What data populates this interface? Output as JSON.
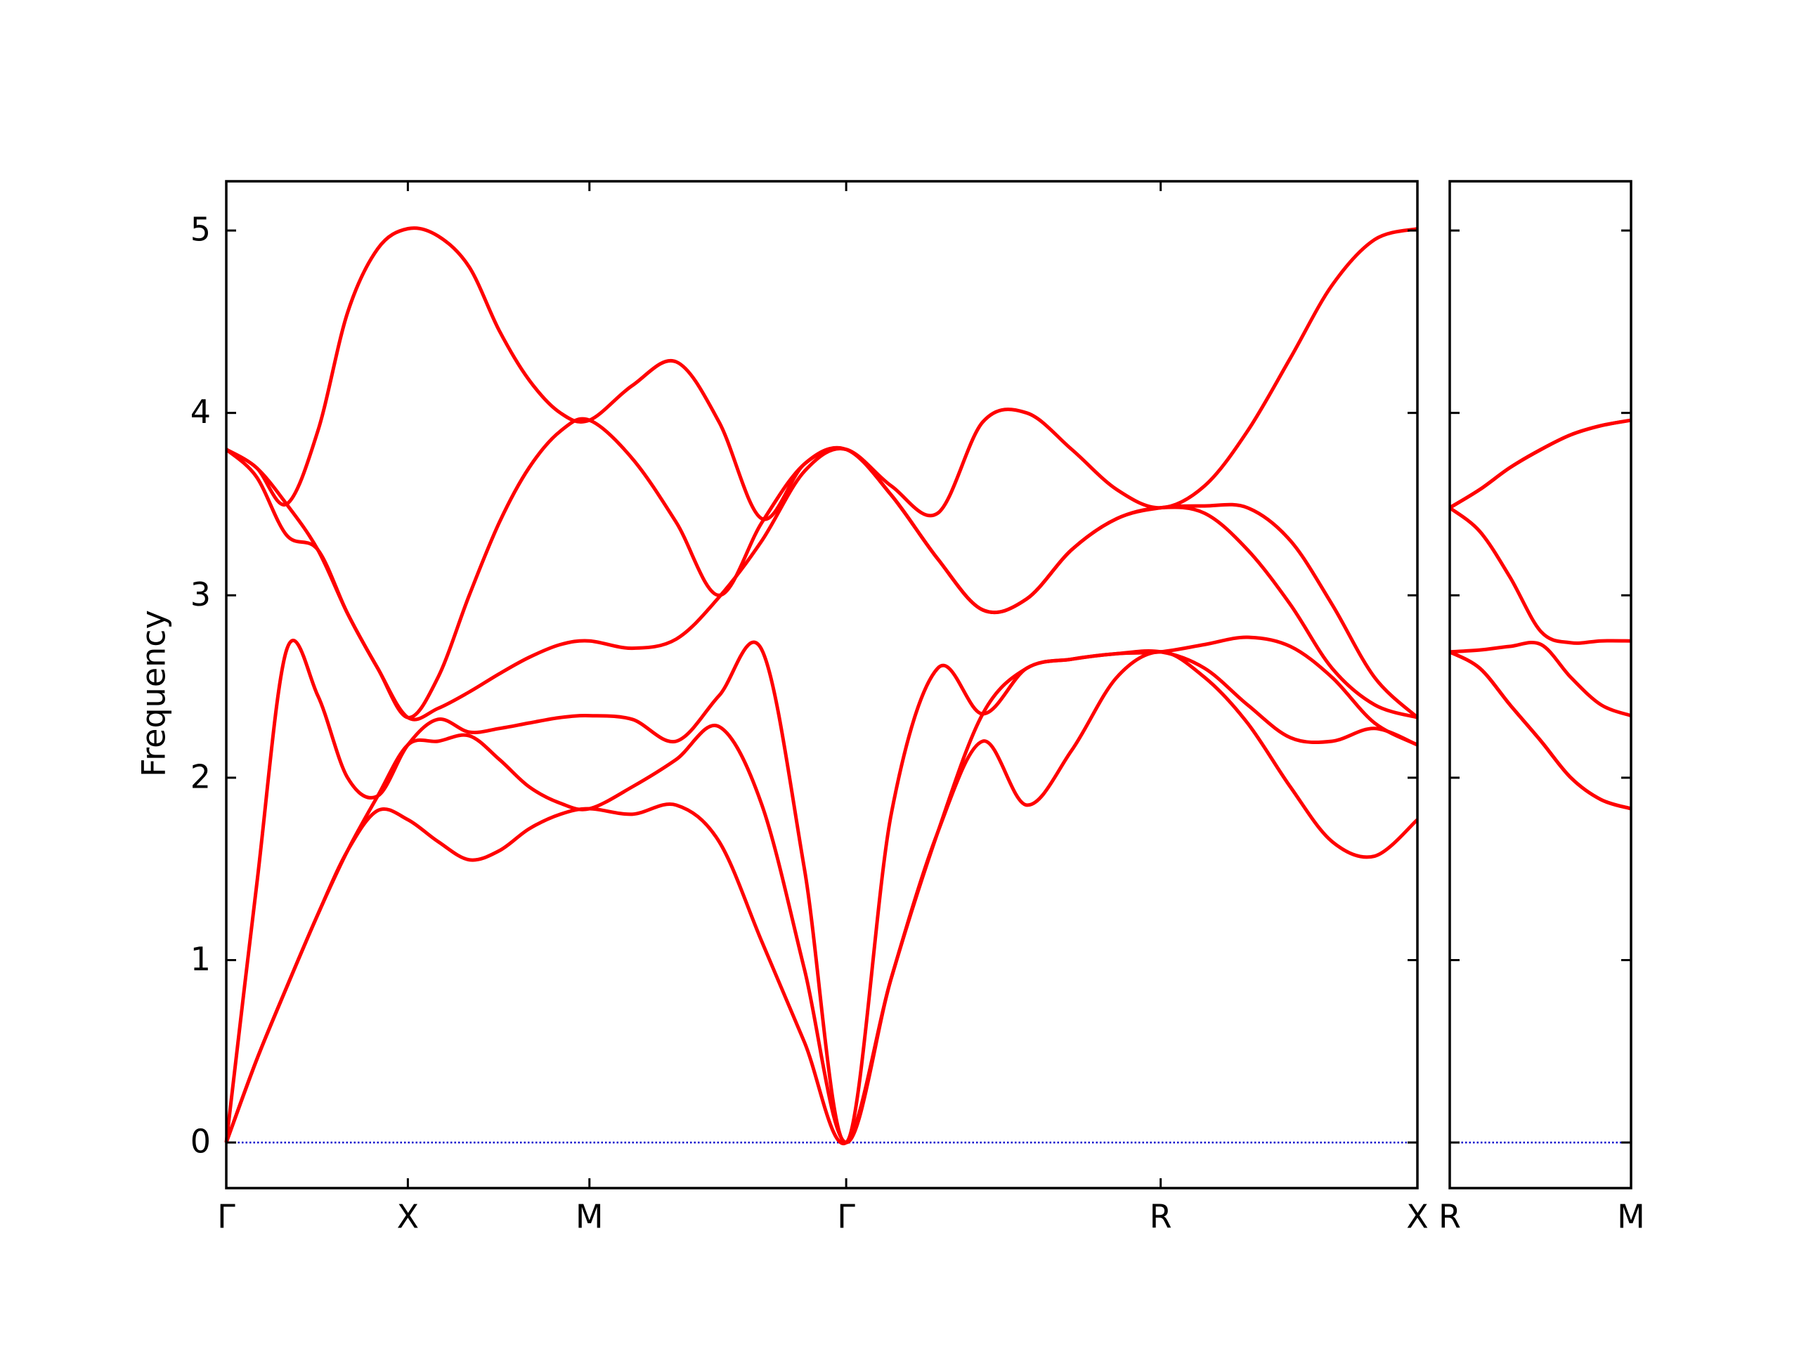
{
  "chart_data": [
    {
      "type": "line",
      "ylabel": "Frequency",
      "xlim": [
        0,
        3.28
      ],
      "ylim": [
        -0.25,
        5.27
      ],
      "xticks": [
        {
          "value": 0,
          "label": "Γ"
        },
        {
          "value": 0.5,
          "label": "X"
        },
        {
          "value": 1.0,
          "label": "M"
        },
        {
          "value": 1.707,
          "label": "Γ"
        },
        {
          "value": 2.573,
          "label": "R"
        },
        {
          "value": 3.28,
          "label": "X"
        }
      ],
      "yticks": [
        0,
        1,
        2,
        3,
        4,
        5
      ],
      "show_yticklabels": true,
      "hline": {
        "value": 0,
        "color": "#0000cc",
        "style": "dotted"
      },
      "x": [
        0,
        0.083,
        0.166,
        0.252,
        0.334,
        0.417,
        0.5,
        0.583,
        0.669,
        0.752,
        0.834,
        0.92,
        1.0,
        1.118,
        1.239,
        1.357,
        1.475,
        1.592,
        1.707,
        1.831,
        1.959,
        2.083,
        2.204,
        2.328,
        2.452,
        2.573,
        2.694,
        2.812,
        2.93,
        3.045,
        3.162,
        3.28
      ],
      "series": [
        {
          "color": "#ff0000",
          "values": [
            0,
            0.45,
            0.85,
            1.25,
            1.6,
            1.82,
            1.77,
            1.65,
            1.55,
            1.6,
            1.72,
            1.8,
            1.83,
            1.8,
            1.85,
            1.65,
            1.1,
            0.55,
            0,
            0.9,
            1.7,
            2.2,
            1.85,
            2.15,
            2.55,
            2.69,
            2.55,
            2.3,
            1.95,
            1.65,
            1.57,
            1.77
          ]
        },
        {
          "color": "#ff0000",
          "values": [
            0,
            0.45,
            0.85,
            1.25,
            1.6,
            1.9,
            2.18,
            2.2,
            2.23,
            2.1,
            1.95,
            1.86,
            1.83,
            1.95,
            2.1,
            2.28,
            1.85,
            0.95,
            0,
            0.9,
            1.7,
            2.35,
            2.6,
            2.65,
            2.68,
            2.69,
            2.6,
            2.4,
            2.22,
            2.2,
            2.27,
            2.18
          ]
        },
        {
          "color": "#ff0000",
          "values": [
            0,
            1.4,
            2.7,
            2.45,
            2.0,
            1.9,
            2.18,
            2.32,
            2.25,
            2.27,
            2.3,
            2.33,
            2.34,
            2.32,
            2.2,
            2.45,
            2.7,
            1.5,
            0,
            1.8,
            2.6,
            2.35,
            2.6,
            2.65,
            2.68,
            2.69,
            2.73,
            2.77,
            2.72,
            2.55,
            2.3,
            2.18
          ]
        },
        {
          "color": "#ff0000",
          "values": [
            3.8,
            3.65,
            3.33,
            3.25,
            2.9,
            2.6,
            2.33,
            2.38,
            2.47,
            2.57,
            2.66,
            2.73,
            2.75,
            2.71,
            2.76,
            2.99,
            3.3,
            3.68,
            3.8,
            3.55,
            3.2,
            2.92,
            2.98,
            3.25,
            3.42,
            3.48,
            3.45,
            3.25,
            2.95,
            2.6,
            2.4,
            2.33
          ]
        },
        {
          "color": "#ff0000",
          "values": [
            3.8,
            3.7,
            3.5,
            3.25,
            2.9,
            2.6,
            2.33,
            2.55,
            3.0,
            3.4,
            3.7,
            3.9,
            3.96,
            3.75,
            3.4,
            3.0,
            3.4,
            3.72,
            3.8,
            3.55,
            3.2,
            2.92,
            2.98,
            3.25,
            3.42,
            3.48,
            3.49,
            3.48,
            3.3,
            2.95,
            2.55,
            2.33
          ]
        },
        {
          "color": "#ff0000",
          "values": [
            3.8,
            3.7,
            3.5,
            3.9,
            4.55,
            4.9,
            5.01,
            4.97,
            4.8,
            4.45,
            4.18,
            4.0,
            3.96,
            4.15,
            4.28,
            3.95,
            3.42,
            3.72,
            3.8,
            3.6,
            3.45,
            3.95,
            4.0,
            3.8,
            3.58,
            3.48,
            3.6,
            3.9,
            4.3,
            4.7,
            4.95,
            5.01
          ]
        }
      ]
    },
    {
      "type": "line",
      "xlim": [
        0,
        0.5
      ],
      "ylim": [
        -0.25,
        5.27
      ],
      "xticks": [
        {
          "value": 0,
          "label": "R"
        },
        {
          "value": 0.5,
          "label": "M"
        }
      ],
      "yticks": [
        0,
        1,
        2,
        3,
        4,
        5
      ],
      "show_yticklabels": false,
      "hline": {
        "value": 0,
        "color": "#0000cc",
        "style": "dotted"
      },
      "x": [
        0,
        0.083,
        0.166,
        0.252,
        0.334,
        0.417,
        0.5
      ],
      "series": [
        {
          "color": "#ff0000",
          "values": [
            2.69,
            2.6,
            2.4,
            2.2,
            2.0,
            1.88,
            1.83
          ]
        },
        {
          "color": "#ff0000",
          "values": [
            2.69,
            2.6,
            2.4,
            2.2,
            2.0,
            1.88,
            1.83
          ]
        },
        {
          "color": "#ff0000",
          "values": [
            2.69,
            2.7,
            2.72,
            2.73,
            2.55,
            2.4,
            2.34
          ]
        },
        {
          "color": "#ff0000",
          "values": [
            3.48,
            3.35,
            3.1,
            2.8,
            2.74,
            2.75,
            2.75
          ]
        },
        {
          "color": "#ff0000",
          "values": [
            3.48,
            3.58,
            3.7,
            3.8,
            3.88,
            3.93,
            3.96
          ]
        },
        {
          "color": "#ff0000",
          "values": [
            3.48,
            3.58,
            3.7,
            3.8,
            3.88,
            3.93,
            3.96
          ]
        }
      ]
    }
  ]
}
